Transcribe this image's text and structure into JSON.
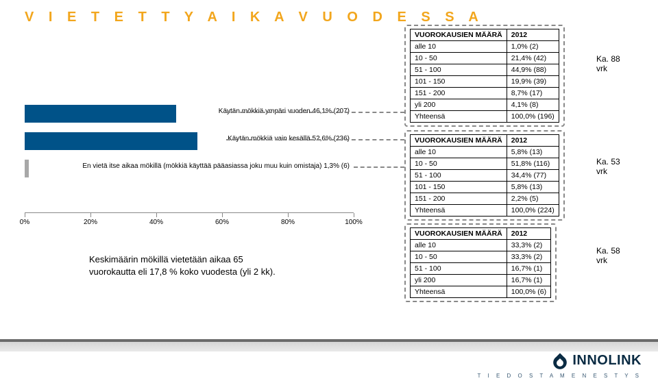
{
  "title": "V I E T E T T Y   A I K A   V U O D E S S A",
  "chart": {
    "x_ticks": [
      "0%",
      "20%",
      "40%",
      "60%",
      "80%",
      "100%"
    ],
    "bars": [
      {
        "label": "Käytän mökkiä ympäri vuoden 46,1% (207)",
        "pct": 46.1,
        "color": "#005288"
      },
      {
        "label": "Käytän mökkiä vain kesällä 52,6% (236)",
        "pct": 52.6,
        "color": "#005288"
      },
      {
        "label": "En vietä itse aikaa mökillä (mökkiä käyttää pääasiassa joku muu kuin omistaja) 1,3% (6)",
        "pct": 1.3,
        "color": "#a8a8a8"
      }
    ]
  },
  "note_line1": "Keskimäärin mökillä vietetään aikaa 65",
  "note_line2": "vuorokautta eli 17,8 % koko vuodesta (yli 2 kk).",
  "topRight": {
    "title": "VUOROKAUSIEN MÄÄRÄ",
    "year": "2012",
    "rows": [
      [
        "alle 10",
        "1,0% (2)"
      ],
      [
        "10 - 50",
        "21,4% (42)"
      ],
      [
        "51 - 100",
        "44,9% (88)"
      ],
      [
        "101 - 150",
        "19,9% (39)"
      ],
      [
        "151 - 200",
        "8,7% (17)"
      ],
      [
        "yli 200",
        "4,1% (8)"
      ],
      [
        "Yhteensä",
        "100,0% (196)"
      ]
    ],
    "ka": "Ka. 88\nvrk"
  },
  "midRight": {
    "title": "VUOROKAUSIEN MÄÄRÄ",
    "year": "2012",
    "rows": [
      [
        "alle 10",
        "5,8% (13)"
      ],
      [
        "10 - 50",
        "51,8% (116)"
      ],
      [
        "51 - 100",
        "34,4% (77)"
      ],
      [
        "101 - 150",
        "5,8% (13)"
      ],
      [
        "151 - 200",
        "2,2% (5)"
      ],
      [
        "Yhteensä",
        "100,0% (224)"
      ]
    ],
    "ka": "Ka. 53\nvrk"
  },
  "lowRight": {
    "title": "VUOROKAUSIEN MÄÄRÄ",
    "year": "2012",
    "rows": [
      [
        "alle 10",
        "33,3% (2)"
      ],
      [
        "10 - 50",
        "33,3% (2)"
      ],
      [
        "51 - 100",
        "16,7% (1)"
      ],
      [
        "yli 200",
        "16,7% (1)"
      ],
      [
        "Yhteensä",
        "100,0% (6)"
      ]
    ],
    "ka": "Ka. 58\nvrk"
  },
  "logo": {
    "name": "INNOLINK",
    "tag": "T I E D O S T A   M E N E S T Y S"
  }
}
